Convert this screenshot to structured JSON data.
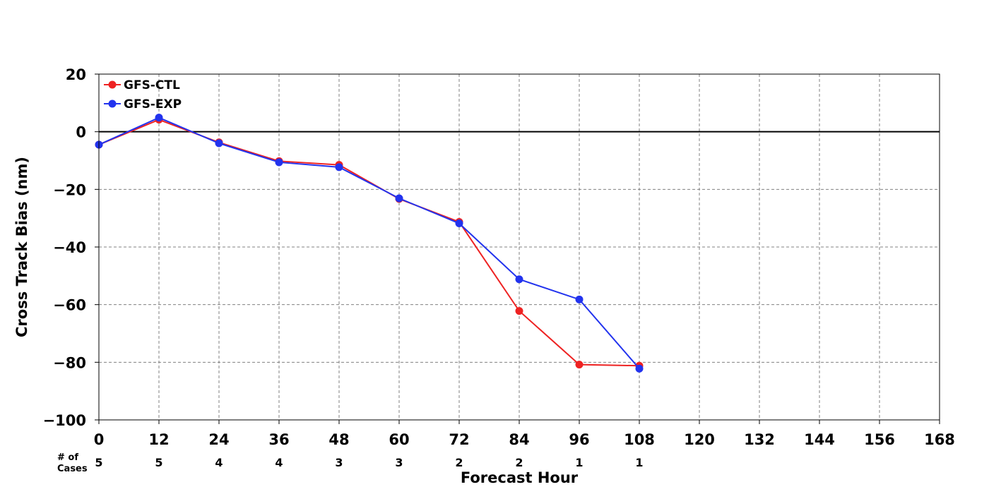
{
  "chart_data": {
    "type": "line",
    "xlabel": "Forecast Hour",
    "ylabel": "Cross Track Bias (nm)",
    "xlim": [
      0,
      168
    ],
    "ylim": [
      -100,
      20
    ],
    "x_ticks": [
      0,
      12,
      24,
      36,
      48,
      60,
      72,
      84,
      96,
      108,
      120,
      132,
      144,
      156,
      168
    ],
    "y_ticks": [
      20,
      0,
      -20,
      -40,
      -60,
      -80,
      -100
    ],
    "y_tick_labels": [
      "20",
      "0",
      "−20",
      "−40",
      "−60",
      "−80",
      "−100"
    ],
    "grid": "dashed",
    "zero_line": true,
    "legend_position": "top-left",
    "x": [
      0,
      12,
      24,
      36,
      48,
      60,
      72,
      84,
      96,
      108
    ],
    "series": [
      {
        "name": "GFS-CTL",
        "color": "#ee2222",
        "values": [
          -4.5,
          4.2,
          -3.7,
          -10.2,
          -11.5,
          -23.3,
          -31.3,
          -62.2,
          -80.8,
          -81.2
        ]
      },
      {
        "name": "GFS-EXP",
        "color": "#2233ee",
        "values": [
          -4.5,
          4.9,
          -4.0,
          -10.6,
          -12.3,
          -23.1,
          -31.8,
          -51.2,
          -58.2,
          -82.2
        ]
      }
    ],
    "cases": {
      "label_line1": "# of",
      "label_line2": "Cases",
      "hours": [
        0,
        12,
        24,
        36,
        48,
        60,
        72,
        84,
        96,
        108
      ],
      "counts": [
        "5",
        "5",
        "4",
        "4",
        "3",
        "3",
        "2",
        "2",
        "1",
        "1"
      ]
    }
  }
}
